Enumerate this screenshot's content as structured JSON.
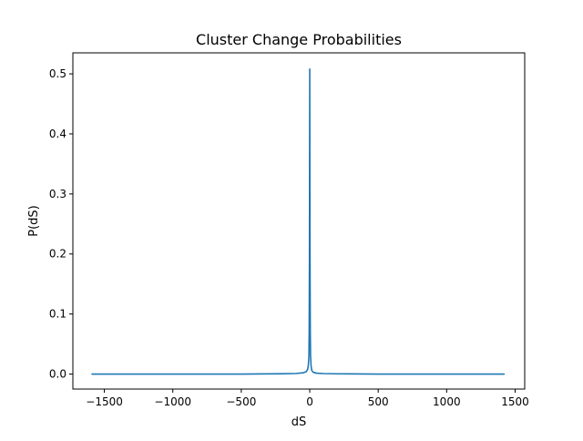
{
  "chart_data": {
    "type": "line",
    "title": "Cluster Change Probabilities",
    "xlabel": "dS",
    "ylabel": "P(dS)",
    "xlim": [
      -1730,
      1570
    ],
    "ylim": [
      -0.025,
      0.535
    ],
    "x_ticks": [
      {
        "value": -1500,
        "label": "−1500"
      },
      {
        "value": -1000,
        "label": "−1000"
      },
      {
        "value": -500,
        "label": "−500"
      },
      {
        "value": 0,
        "label": "0"
      },
      {
        "value": 500,
        "label": "500"
      },
      {
        "value": 1000,
        "label": "1000"
      },
      {
        "value": 1500,
        "label": "1500"
      }
    ],
    "y_ticks": [
      {
        "value": 0.0,
        "label": "0.0"
      },
      {
        "value": 0.1,
        "label": "0.1"
      },
      {
        "value": 0.2,
        "label": "0.2"
      },
      {
        "value": 0.3,
        "label": "0.3"
      },
      {
        "value": 0.4,
        "label": "0.4"
      },
      {
        "value": 0.5,
        "label": "0.5"
      }
    ],
    "grid": false,
    "series": [
      {
        "color": "#1f77b4",
        "x": [
          -1590,
          -1000,
          -500,
          -200,
          -100,
          -50,
          -25,
          -15,
          -10,
          -6,
          -4,
          -2,
          -1,
          0,
          1,
          2,
          4,
          6,
          10,
          15,
          25,
          50,
          100,
          200,
          500,
          1000,
          1420
        ],
        "y": [
          0.0,
          0.0,
          0.0,
          0.0005,
          0.001,
          0.002,
          0.004,
          0.008,
          0.015,
          0.03,
          0.07,
          0.2,
          0.35,
          0.508,
          0.35,
          0.2,
          0.07,
          0.03,
          0.013,
          0.006,
          0.003,
          0.0015,
          0.0008,
          0.0004,
          0.0,
          0.0,
          0.0
        ]
      }
    ]
  }
}
